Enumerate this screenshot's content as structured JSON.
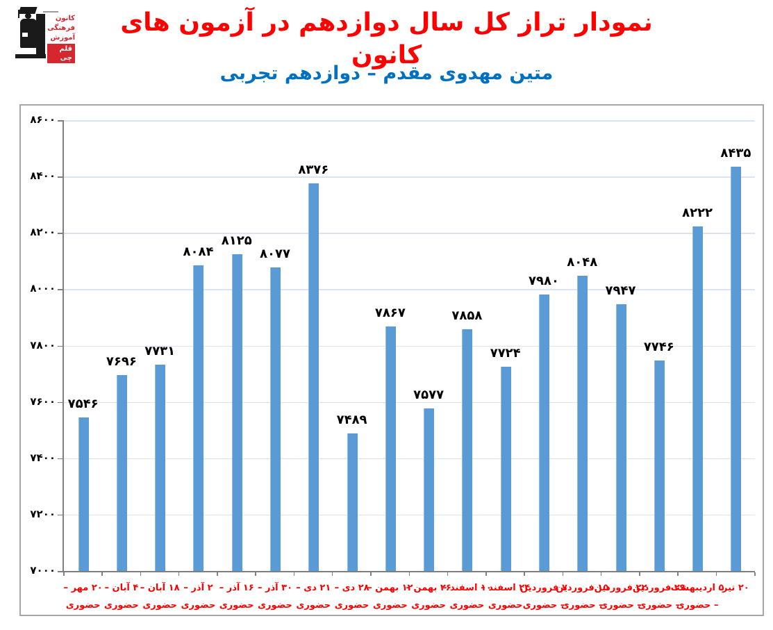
{
  "header": {
    "title": "نمودار تراز کل سال دوازدهم در آزمون های کانون",
    "subtitle": "متین مهدوی مقدم – دوازدهم تجربی",
    "title_color": "#FF0000",
    "subtitle_color": "#0070C0"
  },
  "logo": {
    "name": "kanoon-farhangi-amoozesh",
    "lines": [
      "کانون",
      "فرهنگی",
      "آموزش",
      "قلم چی"
    ],
    "accent": "#D6272E"
  },
  "chart_data": {
    "type": "bar",
    "categories": [
      "۲۰ مهر – حضوری",
      "۴ آبان – حضوری",
      "۱۸ آبان – حضوری",
      "۲ آذر – حضوری",
      "۱۶ آذر – حضوری",
      "۳۰ آذر – حضوری",
      "۲۱ دی – حضوری",
      "۲۸ دی – حضوری",
      "۱۲ بهمن – حضوری",
      "۲۶ بهمن – حضوری",
      "۱۰ اسفند – حضوری",
      "۲۴ اسفند – حضوری",
      "۷ فروردین – حضوری",
      "۱۵ فروردین – حضوری",
      "۲۲ فروردین – حضوری",
      "۲۹ فروردین – حضوری",
      "۵ اردیبهشت – حضوری",
      "۲۰ تیر"
    ],
    "categories_lines": [
      [
        "۲۰ مهر –",
        "حضوری"
      ],
      [
        "۴ آبان –",
        "حضوری"
      ],
      [
        "۱۸ آبان –",
        "حضوری"
      ],
      [
        "۲ آذر –",
        "حضوری"
      ],
      [
        "۱۶ آذر –",
        "حضوری"
      ],
      [
        "۳۰ آذر –",
        "حضوری"
      ],
      [
        "۲۱ دی –",
        "حضوری"
      ],
      [
        "۲۸ دی –",
        "حضوری"
      ],
      [
        "۱۲ بهمن –",
        "حضوری"
      ],
      [
        "۲۶ بهمن –",
        "حضوری"
      ],
      [
        "۱۰ اسفند –",
        "حضوری"
      ],
      [
        "۲۴ اسفند –",
        "حضوری"
      ],
      [
        "۷ فروردین",
        "– حضوری"
      ],
      [
        "۱۵ فروردین",
        "– حضوری"
      ],
      [
        "۲۲ فروردین",
        "– حضوری"
      ],
      [
        "۲۹ فروردین",
        "– حضوری"
      ],
      [
        "۵ اردیبهشت",
        "– حضوری"
      ],
      [
        "۲۰ تیر",
        ""
      ]
    ],
    "values": [
      7546,
      7696,
      7731,
      8084,
      8125,
      8077,
      8376,
      7489,
      7867,
      7577,
      7858,
      7724,
      7980,
      8048,
      7947,
      7746,
      8222,
      8435
    ],
    "value_labels": [
      "۷۵۴۶",
      "۷۶۹۶",
      "۷۷۳۱",
      "۸۰۸۴",
      "۸۱۲۵",
      "۸۰۷۷",
      "۸۳۷۶",
      "۷۴۸۹",
      "۷۸۶۷",
      "۷۵۷۷",
      "۷۸۵۸",
      "۷۷۲۴",
      "۷۹۸۰",
      "۸۰۴۸",
      "۷۹۴۷",
      "۷۷۴۶",
      "۸۲۲۲",
      "۸۴۳۵"
    ],
    "yticks": [
      {
        "value": 8600,
        "label": "۸۶۰۰"
      },
      {
        "value": 8400,
        "label": "۸۴۰۰"
      },
      {
        "value": 8200,
        "label": "۸۲۰۰"
      },
      {
        "value": 8000,
        "label": "۸۰۰۰"
      },
      {
        "value": 7800,
        "label": "۷۸۰۰"
      },
      {
        "value": 7600,
        "label": "۷۶۰۰"
      },
      {
        "value": 7400,
        "label": "۷۴۰۰"
      },
      {
        "value": 7200,
        "label": "۷۲۰۰"
      },
      {
        "value": 7000,
        "label": "۷۰۰۰"
      }
    ],
    "ylim": [
      7000,
      8600
    ],
    "xlabel": "",
    "ylabel": "",
    "grid": true,
    "legend": "none",
    "bar_color": "#5B9BD5",
    "grid_color": "#DAE3F3",
    "axis_color": "#7F7F7F",
    "frame_color": "#A6A6A6",
    "value_label_color": "#000000",
    "category_label_color": "#FF0000"
  }
}
